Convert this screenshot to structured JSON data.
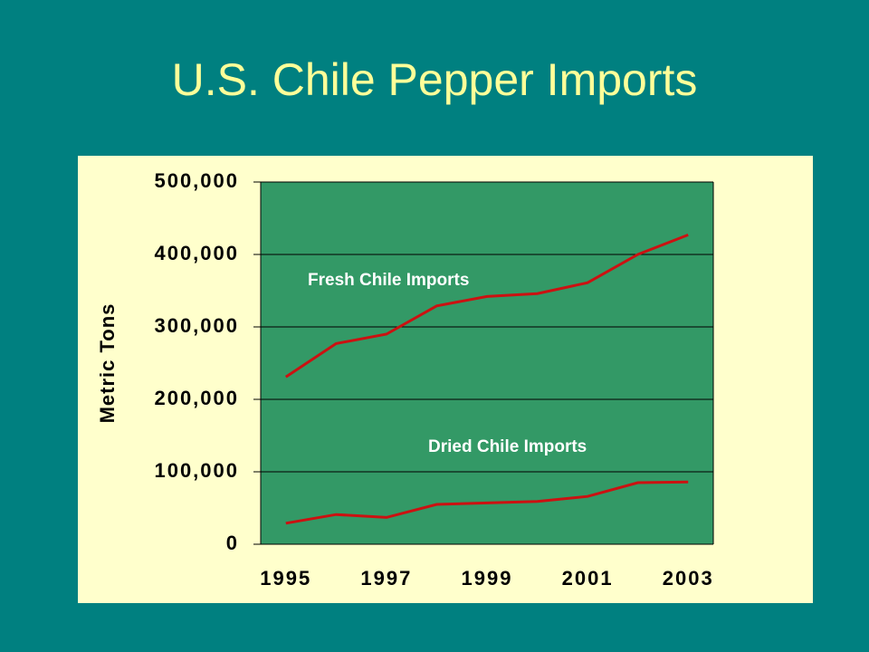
{
  "title": "U.S. Chile Pepper Imports",
  "chart_data": {
    "type": "line",
    "ylabel": "Metric Tons",
    "categories": [
      "1995",
      null,
      "1997",
      null,
      "1999",
      null,
      "2001",
      null,
      "2003"
    ],
    "series": [
      {
        "name": "Fresh Chile Imports",
        "color": "#cc1111",
        "values": [
          231000,
          277000,
          290000,
          329000,
          342000,
          346000,
          361000,
          400000,
          427000
        ]
      },
      {
        "name": "Dried Chile Imports",
        "color": "#cc1111",
        "values": [
          29000,
          41000,
          37000,
          55000,
          57000,
          59000,
          66000,
          85000,
          86000
        ]
      }
    ],
    "ylim": [
      0,
      500000
    ],
    "yticks": [
      0,
      {
        "value": 100000,
        "label": "100,000"
      },
      {
        "value": 200000,
        "label": "200,000"
      },
      {
        "value": 300000,
        "label": "300,000"
      },
      {
        "value": 400000,
        "label": "400,000"
      },
      {
        "value": 500000,
        "label": "500,000"
      }
    ],
    "grid": true
  }
}
